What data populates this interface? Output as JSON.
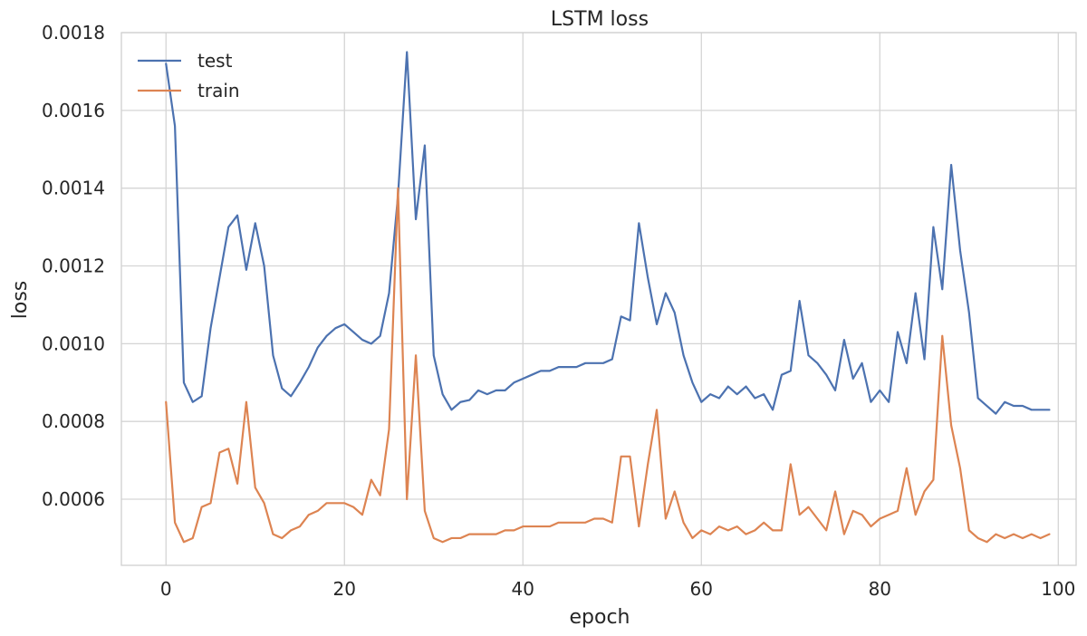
{
  "chart_data": {
    "type": "line",
    "title": "LSTM loss",
    "xlabel": "epoch",
    "ylabel": "loss",
    "xlim": [
      -5,
      102
    ],
    "ylim": [
      0.00043,
      0.0018
    ],
    "xticks": [
      0,
      20,
      40,
      60,
      80,
      100
    ],
    "xtick_labels": [
      "0",
      "20",
      "40",
      "60",
      "80",
      "100"
    ],
    "yticks": [
      0.0006,
      0.0008,
      0.001,
      0.0012,
      0.0014,
      0.0016,
      0.0018
    ],
    "ytick_labels": [
      "0.0006",
      "0.0008",
      "0.0010",
      "0.0012",
      "0.0014",
      "0.0016",
      "0.0018"
    ],
    "grid": true,
    "legend_position": "top-left",
    "x": [
      0,
      1,
      2,
      3,
      4,
      5,
      6,
      7,
      8,
      9,
      10,
      11,
      12,
      13,
      14,
      15,
      16,
      17,
      18,
      19,
      20,
      21,
      22,
      23,
      24,
      25,
      26,
      27,
      28,
      29,
      30,
      31,
      32,
      33,
      34,
      35,
      36,
      37,
      38,
      39,
      40,
      41,
      42,
      43,
      44,
      45,
      46,
      47,
      48,
      49,
      50,
      51,
      52,
      53,
      54,
      55,
      56,
      57,
      58,
      59,
      60,
      61,
      62,
      63,
      64,
      65,
      66,
      67,
      68,
      69,
      70,
      71,
      72,
      73,
      74,
      75,
      76,
      77,
      78,
      79,
      80,
      81,
      82,
      83,
      84,
      85,
      86,
      87,
      88,
      89,
      90,
      91,
      92,
      93,
      94,
      95,
      96,
      97,
      98,
      99
    ],
    "series": [
      {
        "name": "test",
        "color": "#4c72b0",
        "values": [
          0.00172,
          0.00156,
          0.0009,
          0.00085,
          0.000865,
          0.00104,
          0.00117,
          0.0013,
          0.00133,
          0.00119,
          0.00131,
          0.0012,
          0.00097,
          0.000885,
          0.000865,
          0.0009,
          0.00094,
          0.00099,
          0.00102,
          0.00104,
          0.00105,
          0.00103,
          0.00101,
          0.001,
          0.00102,
          0.00113,
          0.00138,
          0.00175,
          0.00132,
          0.00151,
          0.00097,
          0.00087,
          0.00083,
          0.00085,
          0.000855,
          0.00088,
          0.00087,
          0.00088,
          0.00088,
          0.0009,
          0.00091,
          0.00092,
          0.00093,
          0.00093,
          0.00094,
          0.00094,
          0.00094,
          0.00095,
          0.00095,
          0.00095,
          0.00096,
          0.00107,
          0.00106,
          0.00131,
          0.00117,
          0.00105,
          0.00113,
          0.00108,
          0.00097,
          0.0009,
          0.00085,
          0.00087,
          0.00086,
          0.00089,
          0.00087,
          0.00089,
          0.00086,
          0.00087,
          0.00083,
          0.00092,
          0.00093,
          0.00111,
          0.00097,
          0.00095,
          0.00092,
          0.00088,
          0.00101,
          0.00091,
          0.00095,
          0.00085,
          0.00088,
          0.00085,
          0.00103,
          0.00095,
          0.00113,
          0.00096,
          0.0013,
          0.00114,
          0.00146,
          0.00124,
          0.00108,
          0.00086,
          0.00084,
          0.00082,
          0.00085,
          0.00084,
          0.00084,
          0.00083,
          0.00083,
          0.00083
        ]
      },
      {
        "name": "train",
        "color": "#dd8452",
        "values": [
          0.00085,
          0.00054,
          0.00049,
          0.0005,
          0.00058,
          0.00059,
          0.00072,
          0.00073,
          0.00064,
          0.00085,
          0.00063,
          0.00059,
          0.00051,
          0.0005,
          0.00052,
          0.00053,
          0.00056,
          0.00057,
          0.00059,
          0.00059,
          0.00059,
          0.00058,
          0.00056,
          0.00065,
          0.00061,
          0.00078,
          0.0014,
          0.0006,
          0.00097,
          0.00057,
          0.0005,
          0.00049,
          0.0005,
          0.0005,
          0.00051,
          0.00051,
          0.00051,
          0.00051,
          0.00052,
          0.00052,
          0.00053,
          0.00053,
          0.00053,
          0.00053,
          0.00054,
          0.00054,
          0.00054,
          0.00054,
          0.00055,
          0.00055,
          0.00054,
          0.00071,
          0.00071,
          0.00053,
          0.00069,
          0.00083,
          0.00055,
          0.00062,
          0.00054,
          0.0005,
          0.00052,
          0.00051,
          0.00053,
          0.00052,
          0.00053,
          0.00051,
          0.00052,
          0.00054,
          0.00052,
          0.00052,
          0.00069,
          0.00056,
          0.00058,
          0.00055,
          0.00052,
          0.00062,
          0.00051,
          0.00057,
          0.00056,
          0.00053,
          0.00055,
          0.00056,
          0.00057,
          0.00068,
          0.00056,
          0.00062,
          0.00065,
          0.00102,
          0.00079,
          0.00068,
          0.00052,
          0.0005,
          0.00049,
          0.00051,
          0.0005,
          0.00051,
          0.0005,
          0.00051,
          0.0005,
          0.00051
        ]
      }
    ]
  }
}
